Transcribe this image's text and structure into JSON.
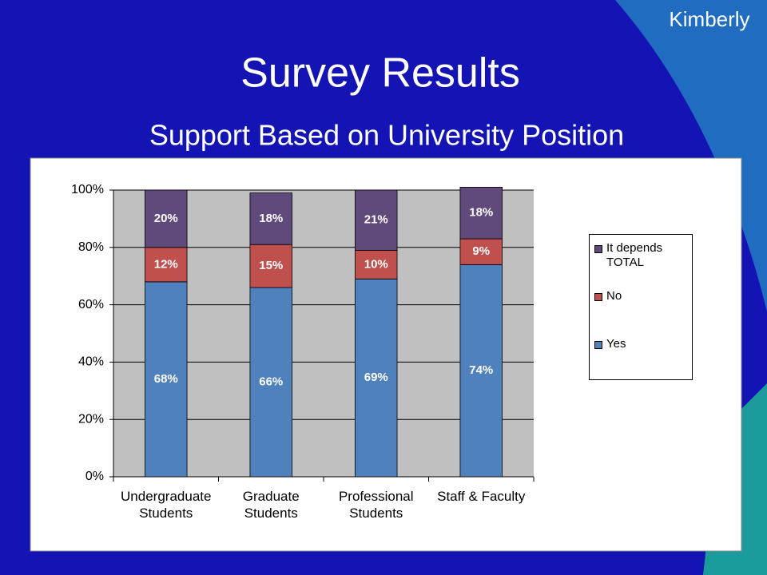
{
  "slide": {
    "author": "Kimberly",
    "title": "Survey Results",
    "subtitle": "Support Based on University Position"
  },
  "chart_data": {
    "type": "stacked_bar",
    "categories": [
      "Undergraduate Students",
      "Graduate Students",
      "Professional Students",
      "Staff & Faculty"
    ],
    "series": [
      {
        "name": "Yes",
        "color": "#4f81bd",
        "values": [
          68,
          66,
          69,
          74
        ],
        "value_labels": [
          "68%",
          "66%",
          "69%",
          "74%"
        ]
      },
      {
        "name": "No",
        "color": "#c0504d",
        "values": [
          12,
          15,
          10,
          9
        ],
        "value_labels": [
          "12%",
          "15%",
          "10%",
          "9%"
        ]
      },
      {
        "name": "It depends TOTAL",
        "color": "#604a7b",
        "values": [
          20,
          18,
          21,
          18
        ],
        "value_labels": [
          "20%",
          "18%",
          "21%",
          "18%"
        ]
      }
    ],
    "ylim": [
      0,
      100
    ],
    "yticks": [
      {
        "value": 0,
        "label": "0%"
      },
      {
        "value": 20,
        "label": "20%"
      },
      {
        "value": 40,
        "label": "40%"
      },
      {
        "value": 60,
        "label": "60%"
      },
      {
        "value": 80,
        "label": "80%"
      },
      {
        "value": 100,
        "label": "100%"
      }
    ],
    "grid": true,
    "legend": "right"
  }
}
